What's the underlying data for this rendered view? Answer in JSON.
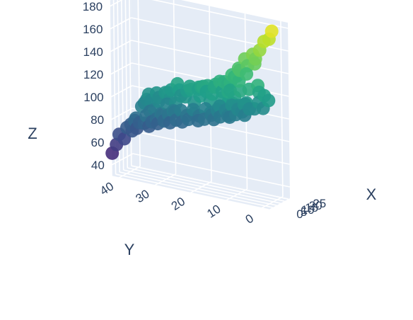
{
  "chart_data": {
    "type": "scatter",
    "subtype": "scatter3d",
    "title": "",
    "axes": {
      "x": {
        "label": "X",
        "ticks": [
          "0",
          "5",
          "10",
          "15",
          "20",
          "25"
        ],
        "range": [
          0,
          27
        ]
      },
      "y": {
        "label": "Y",
        "ticks": [
          "0",
          "10",
          "20",
          "30",
          "40"
        ],
        "range": [
          -2,
          42
        ]
      },
      "z": {
        "label": "Z",
        "ticks": [
          "40",
          "60",
          "80",
          "100",
          "120",
          "140",
          "160",
          "180"
        ],
        "range": [
          30,
          185
        ]
      }
    },
    "colorscale": "Viridis",
    "color_by": "z",
    "colorscale_stops": [
      "#440154",
      "#482878",
      "#3e4989",
      "#31688e",
      "#26828e",
      "#1f9e89",
      "#35b779",
      "#6ece58",
      "#b5de2b",
      "#fde725"
    ],
    "background": {
      "pane": "#e5ecf6",
      "grid": "#ffffff",
      "text": "#2a3f5f"
    },
    "grid": true,
    "legend": "none",
    "series": [
      {
        "points": [
          [
            20,
            1,
            178
          ],
          [
            19,
            3,
            168
          ],
          [
            18,
            4,
            160
          ],
          [
            17,
            5,
            152
          ],
          [
            16,
            7,
            145
          ],
          [
            21,
            2,
            170
          ],
          [
            18,
            6,
            155
          ],
          [
            15,
            9,
            140
          ],
          [
            14,
            11,
            135
          ],
          [
            16,
            5,
            148
          ],
          [
            17,
            8,
            150
          ],
          [
            12,
            14,
            128
          ],
          [
            10,
            17,
            123
          ],
          [
            8,
            19,
            121
          ],
          [
            13,
            12,
            126
          ],
          [
            11,
            15,
            125
          ],
          [
            9,
            18,
            122
          ],
          [
            7,
            21,
            118
          ],
          [
            6,
            24,
            116
          ],
          [
            5,
            27,
            112
          ],
          [
            4,
            30,
            110
          ],
          [
            3,
            32,
            108
          ],
          [
            8,
            25,
            120
          ],
          [
            10,
            22,
            119
          ],
          [
            12,
            20,
            117
          ],
          [
            14,
            16,
            121
          ],
          [
            11,
            23,
            114
          ],
          [
            6,
            28,
            111
          ],
          [
            9,
            27,
            113
          ],
          [
            13,
            18,
            116
          ],
          [
            15,
            14,
            118
          ],
          [
            7,
            30,
            105
          ],
          [
            5,
            33,
            102
          ],
          [
            12,
            25,
            108
          ],
          [
            16,
            12,
            120
          ],
          [
            10,
            10,
            112
          ],
          [
            8,
            13,
            108
          ],
          [
            12,
            9,
            110
          ],
          [
            14,
            7,
            113
          ],
          [
            11,
            12,
            104
          ],
          [
            9,
            16,
            100
          ],
          [
            6,
            20,
            98
          ],
          [
            13,
            15,
            102
          ],
          [
            15,
            10,
            107
          ],
          [
            17,
            8,
            110
          ],
          [
            16,
            15,
            104
          ],
          [
            18,
            12,
            106
          ],
          [
            20,
            9,
            108
          ],
          [
            19,
            14,
            100
          ],
          [
            21,
            11,
            102
          ],
          [
            22,
            8,
            104
          ],
          [
            7,
            26,
            96
          ],
          [
            5,
            29,
            92
          ],
          [
            4,
            33,
            88
          ],
          [
            3,
            36,
            82
          ],
          [
            2,
            38,
            75
          ],
          [
            1,
            40,
            68
          ],
          [
            3,
            39,
            64
          ],
          [
            2,
            41,
            58
          ],
          [
            1,
            42,
            50
          ],
          [
            4,
            37,
            72
          ],
          [
            6,
            34,
            80
          ],
          [
            8,
            31,
            85
          ],
          [
            10,
            28,
            90
          ],
          [
            12,
            25,
            95
          ],
          [
            14,
            22,
            97
          ],
          [
            16,
            19,
            99
          ],
          [
            18,
            16,
            98
          ],
          [
            20,
            13,
            97
          ],
          [
            22,
            10,
            100
          ],
          [
            24,
            7,
            104
          ],
          [
            23,
            12,
            96
          ],
          [
            21,
            16,
            92
          ],
          [
            19,
            20,
            88
          ],
          [
            17,
            24,
            86
          ],
          [
            15,
            27,
            84
          ],
          [
            13,
            30,
            82
          ],
          [
            11,
            33,
            80
          ],
          [
            9,
            36,
            78
          ],
          [
            7,
            38,
            76
          ],
          [
            20,
            22,
            85
          ],
          [
            22,
            18,
            88
          ],
          [
            24,
            14,
            92
          ],
          [
            25,
            10,
            96
          ],
          [
            18,
            26,
            82
          ],
          [
            16,
            29,
            80
          ],
          [
            14,
            32,
            78
          ],
          [
            12,
            34,
            75
          ],
          [
            10,
            37,
            72
          ],
          [
            9,
            11,
            122
          ],
          [
            7,
            15,
            118
          ],
          [
            5,
            18,
            115
          ],
          [
            4,
            22,
            112
          ],
          [
            3,
            26,
            108
          ],
          [
            2,
            29,
            104
          ],
          [
            11,
            8,
            124
          ],
          [
            13,
            6,
            126
          ],
          [
            15,
            4,
            130
          ],
          [
            10,
            13,
            127
          ],
          [
            12,
            11,
            129
          ],
          [
            14,
            9,
            131
          ],
          [
            16,
            10,
            134
          ],
          [
            13,
            13,
            128
          ],
          [
            11,
            19,
            120
          ],
          [
            17,
            11,
            132
          ],
          [
            19,
            8,
            136
          ],
          [
            18,
            10,
            140
          ],
          [
            6,
            12,
            117
          ],
          [
            8,
            9,
            119
          ],
          [
            4,
            15,
            113
          ],
          [
            2,
            19,
            110
          ],
          [
            1,
            24,
            106
          ],
          [
            5,
            10,
            116
          ],
          [
            21,
            5,
            121
          ],
          [
            23,
            4,
            118
          ],
          [
            24,
            3,
            114
          ],
          [
            25,
            6,
            110
          ],
          [
            26,
            5,
            105
          ],
          [
            22,
            14,
            94
          ],
          [
            19,
            18,
            93
          ],
          [
            17,
            21,
            91
          ],
          [
            15,
            24,
            90
          ],
          [
            6,
            31,
            94
          ],
          [
            8,
            28,
            100
          ],
          [
            9,
            33,
            90
          ],
          [
            11,
            30,
            88
          ],
          [
            13,
            27,
            92
          ],
          [
            3,
            34,
            96
          ],
          [
            2,
            33,
            100
          ],
          [
            1,
            31,
            104
          ],
          [
            0,
            35,
            86
          ]
        ]
      }
    ]
  }
}
